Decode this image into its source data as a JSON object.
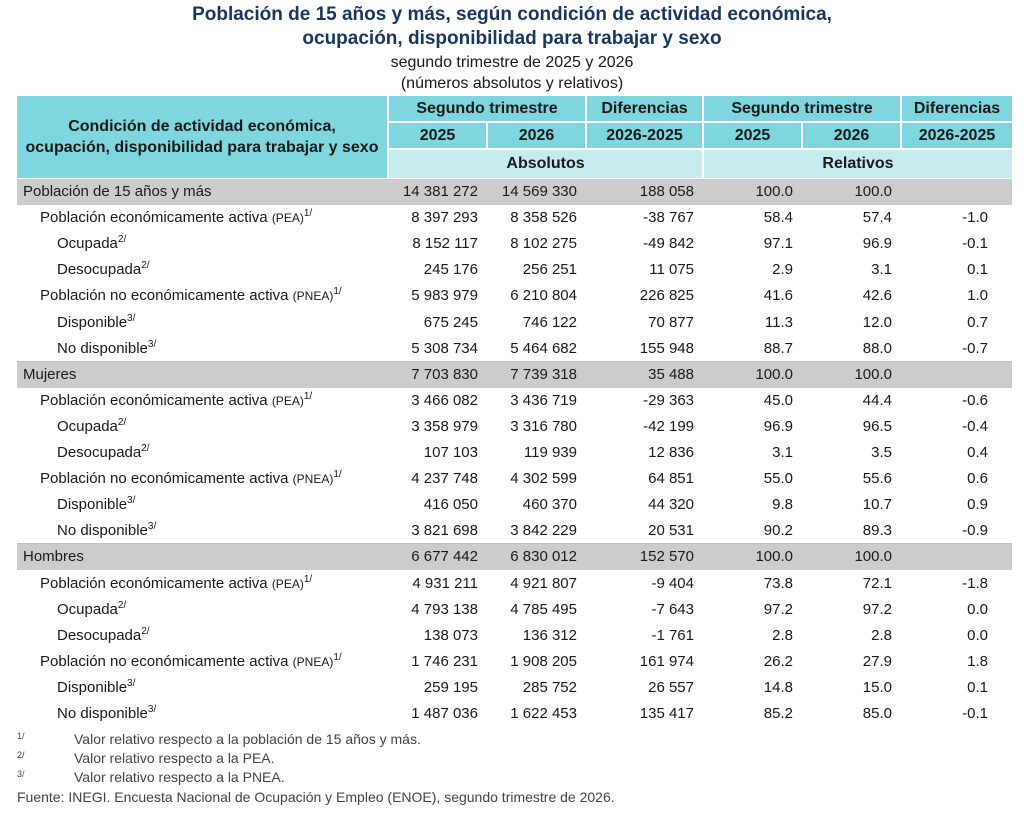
{
  "title": {
    "line1": "Población de 15 años y más, según condición de actividad económica,",
    "line2": "ocupación, disponibilidad para trabajar y sexo",
    "line3": "segundo trimestre de 2025 y 2026",
    "line4": "(números absolutos y relativos)"
  },
  "header": {
    "stub": "Condición de actividad económica, ocupación, disponibilidad para trabajar y sexo",
    "segundo_trimestre": "Segundo trimestre",
    "diferencias": "Diferencias",
    "y2025": "2025",
    "y2026": "2026",
    "diff_years": "2026-2025",
    "absolutos": "Absolutos",
    "relativos": "Relativos"
  },
  "rows": [
    {
      "label": "Población de 15 años y más",
      "abbr": "",
      "sup": "",
      "indent": 0,
      "group": true,
      "a2025": "14 381 272",
      "a2026": "14 569 330",
      "adiff": "188 058",
      "r2025": "100.0",
      "r2026": "100.0",
      "rdiff": ""
    },
    {
      "label": "Población económicamente activa",
      "abbr": "(PEA)",
      "sup": "1/",
      "indent": 1,
      "group": false,
      "a2025": "8 397 293",
      "a2026": "8 358 526",
      "adiff": "-38 767",
      "r2025": "58.4",
      "r2026": "57.4",
      "rdiff": "-1.0"
    },
    {
      "label": "Ocupada",
      "abbr": "",
      "sup": "2/",
      "indent": 2,
      "group": false,
      "a2025": "8 152 117",
      "a2026": "8 102 275",
      "adiff": "-49 842",
      "r2025": "97.1",
      "r2026": "96.9",
      "rdiff": "-0.1"
    },
    {
      "label": "Desocupada",
      "abbr": "",
      "sup": "2/",
      "indent": 2,
      "group": false,
      "a2025": "245 176",
      "a2026": "256 251",
      "adiff": "11 075",
      "r2025": "2.9",
      "r2026": "3.1",
      "rdiff": "0.1"
    },
    {
      "label": "Población no económicamente activa",
      "abbr": "(PNEA)",
      "sup": "1/",
      "indent": 1,
      "group": false,
      "a2025": "5 983 979",
      "a2026": "6 210 804",
      "adiff": "226 825",
      "r2025": "41.6",
      "r2026": "42.6",
      "rdiff": "1.0"
    },
    {
      "label": "Disponible",
      "abbr": "",
      "sup": "3/",
      "indent": 2,
      "group": false,
      "a2025": "675 245",
      "a2026": "746 122",
      "adiff": "70 877",
      "r2025": "11.3",
      "r2026": "12.0",
      "rdiff": "0.7"
    },
    {
      "label": "No disponible",
      "abbr": "",
      "sup": "3/",
      "indent": 2,
      "group": false,
      "a2025": "5 308 734",
      "a2026": "5 464 682",
      "adiff": "155 948",
      "r2025": "88.7",
      "r2026": "88.0",
      "rdiff": "-0.7"
    },
    {
      "label": "Mujeres",
      "abbr": "",
      "sup": "",
      "indent": 0,
      "group": true,
      "a2025": "7 703 830",
      "a2026": "7 739 318",
      "adiff": "35 488",
      "r2025": "100.0",
      "r2026": "100.0",
      "rdiff": ""
    },
    {
      "label": "Población económicamente activa",
      "abbr": "(PEA)",
      "sup": "1/",
      "indent": 1,
      "group": false,
      "a2025": "3 466 082",
      "a2026": "3 436 719",
      "adiff": "-29 363",
      "r2025": "45.0",
      "r2026": "44.4",
      "rdiff": "-0.6"
    },
    {
      "label": "Ocupada",
      "abbr": "",
      "sup": "2/",
      "indent": 2,
      "group": false,
      "a2025": "3 358 979",
      "a2026": "3 316 780",
      "adiff": "-42 199",
      "r2025": "96.9",
      "r2026": "96.5",
      "rdiff": "-0.4"
    },
    {
      "label": "Desocupada",
      "abbr": "",
      "sup": "2/",
      "indent": 2,
      "group": false,
      "a2025": "107 103",
      "a2026": "119 939",
      "adiff": "12 836",
      "r2025": "3.1",
      "r2026": "3.5",
      "rdiff": "0.4"
    },
    {
      "label": "Población no económicamente activa",
      "abbr": "(PNEA)",
      "sup": "1/",
      "indent": 1,
      "group": false,
      "a2025": "4 237 748",
      "a2026": "4 302 599",
      "adiff": "64 851",
      "r2025": "55.0",
      "r2026": "55.6",
      "rdiff": "0.6"
    },
    {
      "label": "Disponible",
      "abbr": "",
      "sup": "3/",
      "indent": 2,
      "group": false,
      "a2025": "416 050",
      "a2026": "460 370",
      "adiff": "44 320",
      "r2025": "9.8",
      "r2026": "10.7",
      "rdiff": "0.9"
    },
    {
      "label": "No disponible",
      "abbr": "",
      "sup": "3/",
      "indent": 2,
      "group": false,
      "a2025": "3 821 698",
      "a2026": "3 842 229",
      "adiff": "20 531",
      "r2025": "90.2",
      "r2026": "89.3",
      "rdiff": "-0.9"
    },
    {
      "label": "Hombres",
      "abbr": "",
      "sup": "",
      "indent": 0,
      "group": true,
      "a2025": "6 677 442",
      "a2026": "6 830 012",
      "adiff": "152 570",
      "r2025": "100.0",
      "r2026": "100.0",
      "rdiff": ""
    },
    {
      "label": "Población económicamente activa",
      "abbr": "(PEA)",
      "sup": "1/",
      "indent": 1,
      "group": false,
      "a2025": "4 931 211",
      "a2026": "4 921 807",
      "adiff": "-9 404",
      "r2025": "73.8",
      "r2026": "72.1",
      "rdiff": "-1.8"
    },
    {
      "label": "Ocupada",
      "abbr": "",
      "sup": "2/",
      "indent": 2,
      "group": false,
      "a2025": "4 793 138",
      "a2026": "4 785 495",
      "adiff": "-7 643",
      "r2025": "97.2",
      "r2026": "97.2",
      "rdiff": "0.0"
    },
    {
      "label": "Desocupada",
      "abbr": "",
      "sup": "2/",
      "indent": 2,
      "group": false,
      "a2025": "138 073",
      "a2026": "136 312",
      "adiff": "-1 761",
      "r2025": "2.8",
      "r2026": "2.8",
      "rdiff": "0.0"
    },
    {
      "label": "Población no económicamente activa",
      "abbr": "(PNEA)",
      "sup": "1/",
      "indent": 1,
      "group": false,
      "a2025": "1 746 231",
      "a2026": "1 908 205",
      "adiff": "161 974",
      "r2025": "26.2",
      "r2026": "27.9",
      "rdiff": "1.8"
    },
    {
      "label": "Disponible",
      "abbr": "",
      "sup": "3/",
      "indent": 2,
      "group": false,
      "a2025": "259 195",
      "a2026": "285 752",
      "adiff": "26 557",
      "r2025": "14.8",
      "r2026": "15.0",
      "rdiff": "0.1"
    },
    {
      "label": "No disponible",
      "abbr": "",
      "sup": "3/",
      "indent": 2,
      "group": false,
      "a2025": "1 487 036",
      "a2026": "1 622 453",
      "adiff": "135 417",
      "r2025": "85.2",
      "r2026": "85.0",
      "rdiff": "-0.1"
    }
  ],
  "notes": [
    {
      "mark": "1/",
      "text": "Valor relativo respecto a la población de 15 años y más."
    },
    {
      "mark": "2/",
      "text": "Valor relativo respecto a la PEA."
    },
    {
      "mark": "3/",
      "text": "Valor relativo respecto a la PNEA."
    }
  ],
  "source": "Fuente: INEGI. Encuesta Nacional de Ocupación y Empleo (ENOE), segundo trimestre de 2026."
}
